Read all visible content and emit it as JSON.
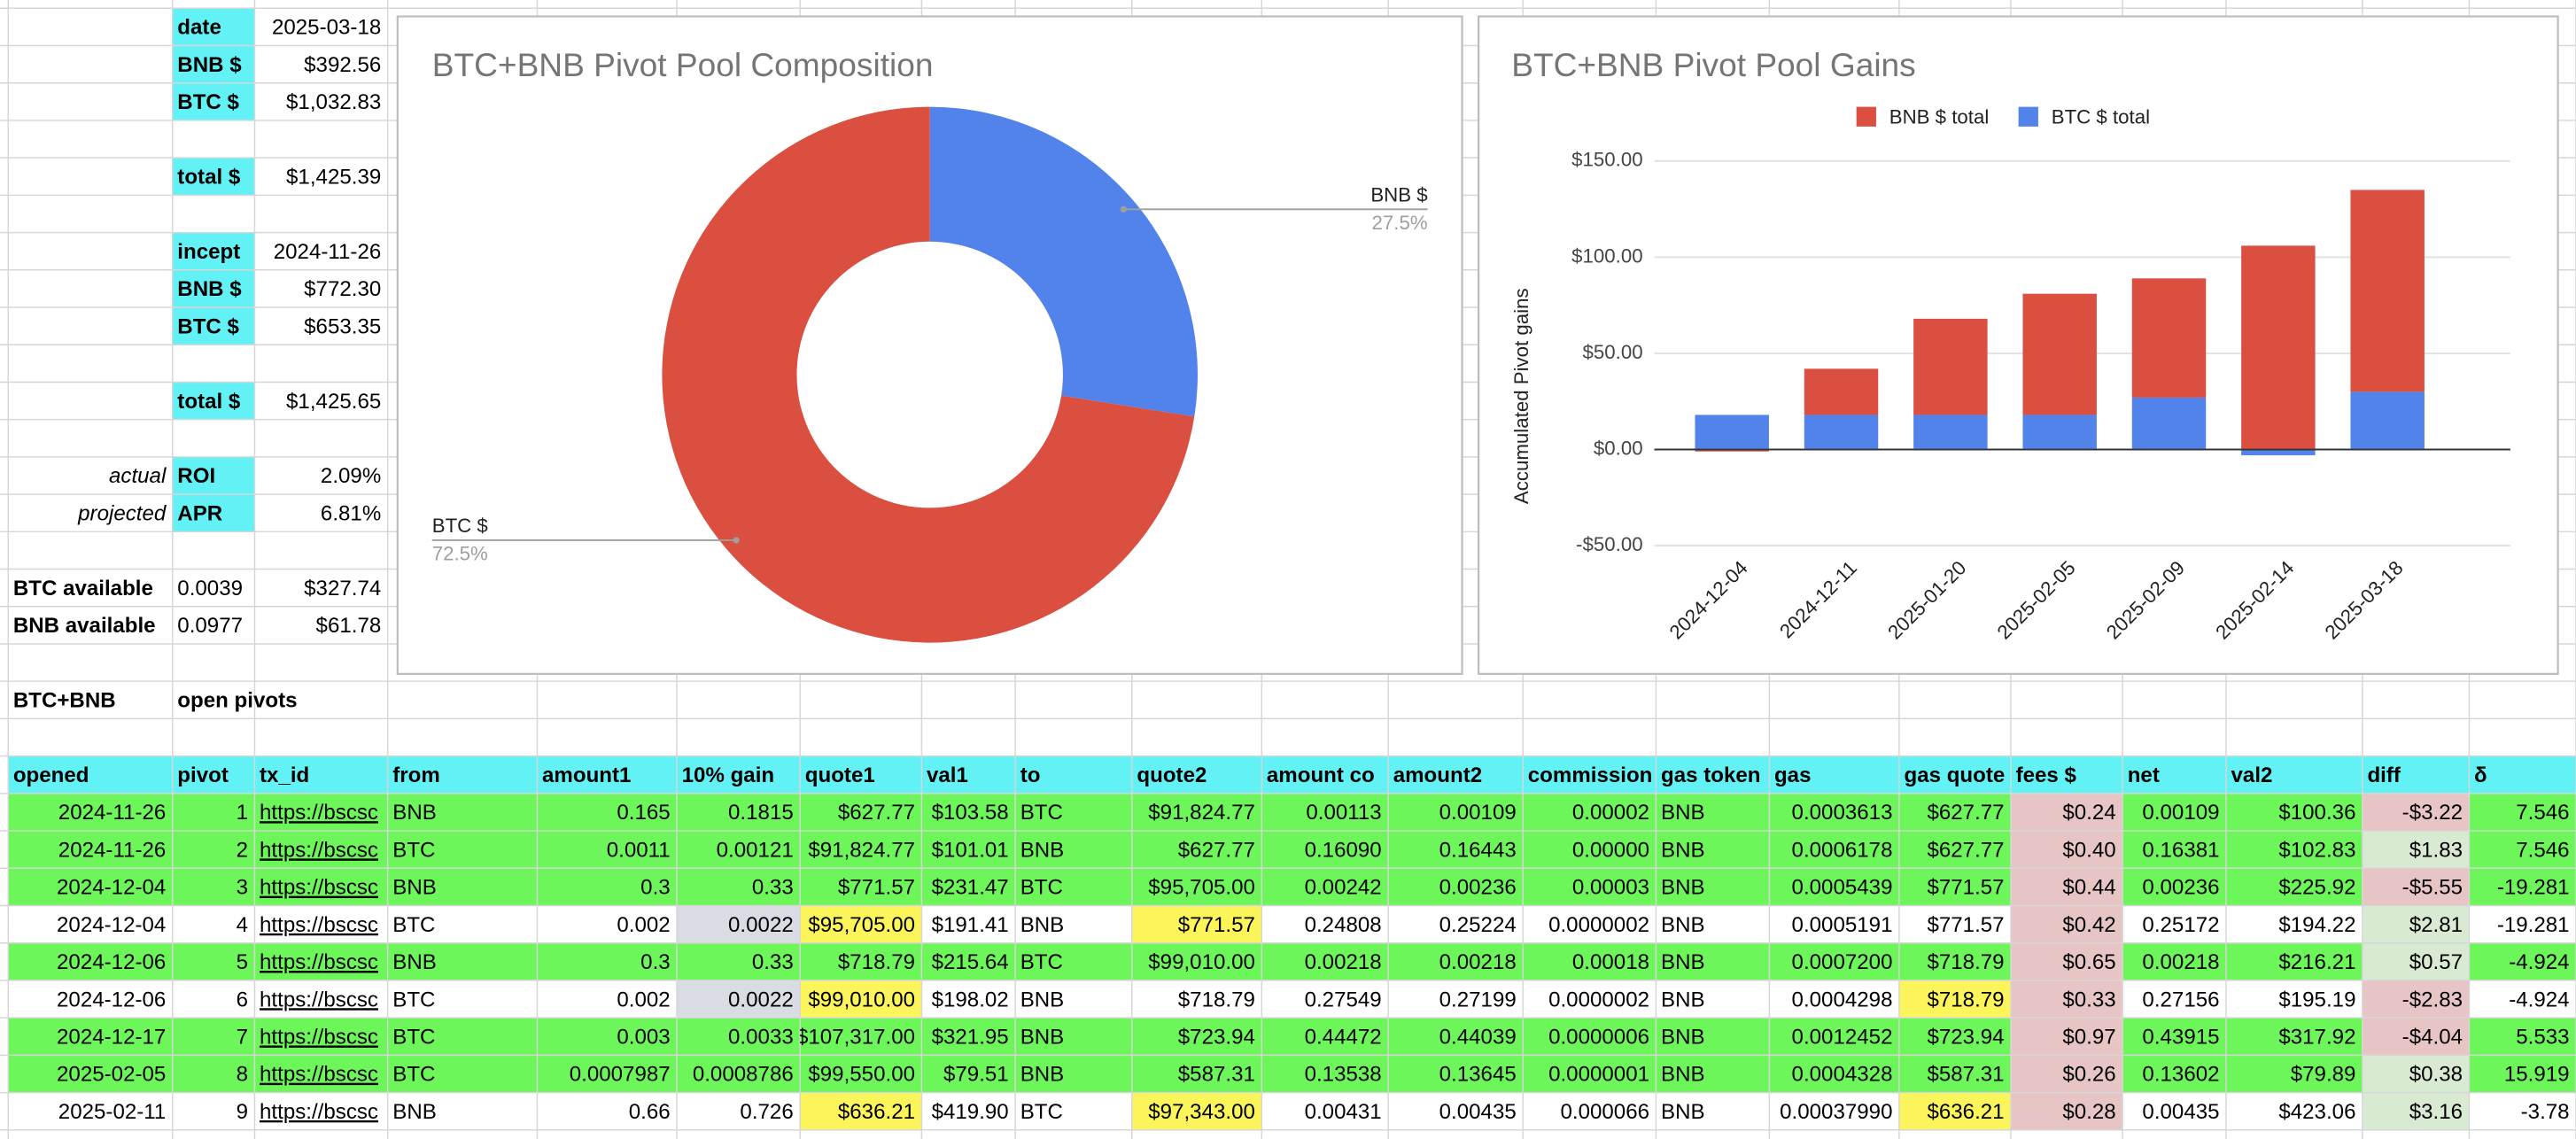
{
  "sheet": {
    "summary": [
      {
        "key": "date",
        "value": "2025-03-18"
      },
      {
        "key": "BNB $",
        "value": "$392.56"
      },
      {
        "key": "BTC $",
        "value": "$1,032.83"
      },
      {
        "key": "total $",
        "value": "$1,425.39"
      },
      {
        "key": "incept",
        "value": "2024-11-26"
      },
      {
        "key": "BNB $",
        "value": "$772.30"
      },
      {
        "key": "BTC $",
        "value": "$653.35"
      },
      {
        "key": "total $",
        "value": "$1,425.65"
      },
      {
        "note": "actual",
        "key": "ROI",
        "value": "2.09%"
      },
      {
        "note": "projected",
        "key": "APR",
        "value": "6.81%"
      }
    ],
    "available": [
      {
        "label": "BTC available",
        "amount": "0.0039",
        "value": "$327.74"
      },
      {
        "label": "BNB available",
        "amount": "0.0977",
        "value": "$61.78"
      }
    ],
    "section": {
      "name": "BTC+BNB",
      "label": "open pivots"
    },
    "table": {
      "columns": [
        "opened",
        "pivot",
        "tx_id",
        "from",
        "amount1",
        "10% gain",
        "quote1",
        "val1",
        "to",
        "quote2",
        "amount co",
        "amount2",
        "commission",
        "gas token",
        "gas",
        "gas quote",
        "fees $",
        "net",
        "val2",
        "diff",
        "δ"
      ],
      "rows": [
        [
          "2024-11-26",
          "1",
          "https://bscsc",
          "BNB",
          "0.165",
          "0.1815",
          "$627.77",
          "$103.58",
          "BTC",
          "$91,824.77",
          "0.00113",
          "0.00109",
          "0.00002",
          "BNB",
          "0.0003613",
          "$627.77",
          "$0.24",
          "0.00109",
          "$100.36",
          "-$3.22",
          "7.546"
        ],
        [
          "2024-11-26",
          "2",
          "https://bscsc",
          "BTC",
          "0.0011",
          "0.00121",
          "$91,824.77",
          "$101.01",
          "BNB",
          "$627.77",
          "0.16090",
          "0.16443",
          "0.00000",
          "BNB",
          "0.0006178",
          "$627.77",
          "$0.40",
          "0.16381",
          "$102.83",
          "$1.83",
          "7.546"
        ],
        [
          "2024-12-04",
          "3",
          "https://bscsc",
          "BNB",
          "0.3",
          "0.33",
          "$771.57",
          "$231.47",
          "BTC",
          "$95,705.00",
          "0.00242",
          "0.00236",
          "0.00003",
          "BNB",
          "0.0005439",
          "$771.57",
          "$0.44",
          "0.00236",
          "$225.92",
          "-$5.55",
          "-19.281"
        ],
        [
          "2024-12-04",
          "4",
          "https://bscsc",
          "BTC",
          "0.002",
          "0.0022",
          "$95,705.00",
          "$191.41",
          "BNB",
          "$771.57",
          "0.24808",
          "0.25224",
          "0.0000002",
          "BNB",
          "0.0005191",
          "$771.57",
          "$0.42",
          "0.25172",
          "$194.22",
          "$2.81",
          "-19.281"
        ],
        [
          "2024-12-06",
          "5",
          "https://bscsc",
          "BNB",
          "0.3",
          "0.33",
          "$718.79",
          "$215.64",
          "BTC",
          "$99,010.00",
          "0.00218",
          "0.00218",
          "0.00018",
          "BNB",
          "0.0007200",
          "$718.79",
          "$0.65",
          "0.00218",
          "$216.21",
          "$0.57",
          "-4.924"
        ],
        [
          "2024-12-06",
          "6",
          "https://bscsc",
          "BTC",
          "0.002",
          "0.0022",
          "$99,010.00",
          "$198.02",
          "BNB",
          "$718.79",
          "0.27549",
          "0.27199",
          "0.0000002",
          "BNB",
          "0.0004298",
          "$718.79",
          "$0.33",
          "0.27156",
          "$195.19",
          "-$2.83",
          "-4.924"
        ],
        [
          "2024-12-17",
          "7",
          "https://bscsc",
          "BTC",
          "0.003",
          "0.0033",
          "$107,317.00",
          "$321.95",
          "BNB",
          "$723.94",
          "0.44472",
          "0.44039",
          "0.0000006",
          "BNB",
          "0.0012452",
          "$723.94",
          "$0.97",
          "0.43915",
          "$317.92",
          "-$4.04",
          "5.533"
        ],
        [
          "2025-02-05",
          "8",
          "https://bscsc",
          "BTC",
          "0.0007987",
          "0.0008786",
          "$99,550.00",
          "$79.51",
          "BNB",
          "$587.31",
          "0.13538",
          "0.13645",
          "0.0000001",
          "BNB",
          "0.0004328",
          "$587.31",
          "$0.26",
          "0.13602",
          "$79.89",
          "$0.38",
          "15.919"
        ],
        [
          "2025-02-11",
          "9",
          "https://bscsc",
          "BNB",
          "0.66",
          "0.726",
          "$636.21",
          "$419.90",
          "BTC",
          "$97,343.00",
          "0.00431",
          "0.00435",
          "0.000066",
          "BNB",
          "0.00037990",
          "$636.21",
          "$0.28",
          "0.00435",
          "$423.06",
          "$3.16",
          "-3.78"
        ]
      ]
    }
  },
  "chart_data": [
    {
      "type": "pie",
      "title": "BTC+BNB Pivot Pool Composition",
      "categories": [
        "BNB $",
        "BTC $"
      ],
      "values": [
        27.5,
        72.5
      ],
      "value_labels": [
        "27.5%",
        "72.5%"
      ],
      "colors": [
        "#5283ea",
        "#da4f3f"
      ]
    },
    {
      "type": "bar",
      "stacked": true,
      "title": "BTC+BNB Pivot Pool Gains",
      "ylabel": "Accumulated Pivot gains",
      "categories": [
        "2024-12-04",
        "2024-12-11",
        "2025-01-20",
        "2025-02-05",
        "2025-02-09",
        "2025-02-14",
        "2025-03-18"
      ],
      "series": [
        {
          "name": "BNB $ total",
          "color": "#da4f3f",
          "values": [
            -1,
            24,
            50,
            63,
            62,
            106,
            105
          ]
        },
        {
          "name": "BTC $ total",
          "color": "#5283ea",
          "values": [
            18,
            18,
            18,
            18,
            27,
            -3,
            30
          ]
        }
      ],
      "ylim": [
        -50,
        150
      ],
      "yticks": [
        {
          "value": -50,
          "label": "-$50.00"
        },
        {
          "value": 0,
          "label": "$0.00"
        },
        {
          "value": 50,
          "label": "$50.00"
        },
        {
          "value": 100,
          "label": "$100.00"
        },
        {
          "value": 150,
          "label": "$150.00"
        }
      ],
      "grid": true,
      "legend": "top"
    }
  ]
}
